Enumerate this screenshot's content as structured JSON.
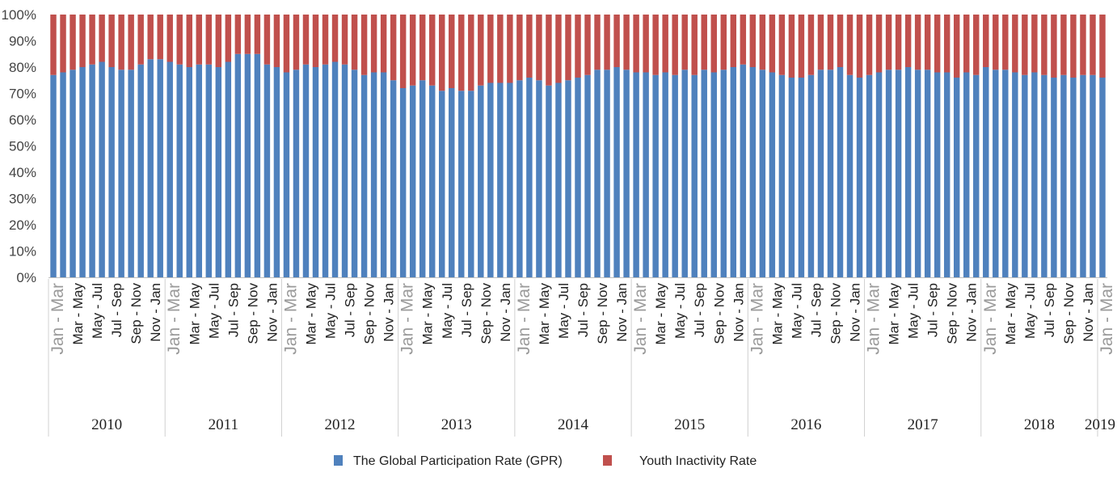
{
  "chart_data": {
    "type": "bar",
    "stacked": true,
    "percent_stacked": true,
    "title": "",
    "xlabel": "",
    "ylabel": "",
    "ylim": [
      0,
      100
    ],
    "y_ticks": [
      "0%",
      "10%",
      "20%",
      "30%",
      "40%",
      "50%",
      "60%",
      "70%",
      "80%",
      "90%",
      "100%"
    ],
    "grid": false,
    "legend_position": "bottom",
    "colors": {
      "gpr": "#4f81bd",
      "inactivity": "#c0504d"
    },
    "x_tick_labels": [
      "Jan - Mar",
      "Mar - May",
      "May - Jul",
      "Jul - Sep",
      "Sep - Nov",
      "Nov - Jan"
    ],
    "year_groups": [
      {
        "label": "2010",
        "bars": 12
      },
      {
        "label": "2011",
        "bars": 12
      },
      {
        "label": "2012",
        "bars": 12
      },
      {
        "label": "2013",
        "bars": 12
      },
      {
        "label": "2014",
        "bars": 12
      },
      {
        "label": "2015",
        "bars": 12
      },
      {
        "label": "2016",
        "bars": 12
      },
      {
        "label": "2017",
        "bars": 12
      },
      {
        "label": "2018",
        "bars": 12
      },
      {
        "label": "2019",
        "bars": 1
      }
    ],
    "series": [
      {
        "name": "The Global Participation Rate (GPR)",
        "values": [
          77,
          78,
          79,
          80,
          81,
          82,
          80,
          79,
          79,
          81,
          83,
          83,
          82,
          81,
          80,
          81,
          81,
          80,
          82,
          85,
          85,
          85,
          81,
          80,
          78,
          79,
          81,
          80,
          81,
          82,
          81,
          79,
          77,
          78,
          78,
          75,
          72,
          73,
          75,
          73,
          71,
          72,
          71,
          71,
          73,
          74,
          74,
          74,
          75,
          76,
          75,
          73,
          74,
          75,
          76,
          77,
          79,
          79,
          80,
          79,
          78,
          78,
          77,
          78,
          77,
          79,
          77,
          79,
          78,
          79,
          80,
          81,
          80,
          79,
          78,
          77,
          76,
          76,
          77,
          79,
          79,
          80,
          77,
          76,
          77,
          78,
          79,
          79,
          80,
          79,
          79,
          78,
          78,
          76,
          78,
          77,
          80,
          79,
          79,
          78,
          77,
          78,
          77,
          76,
          77,
          76,
          77,
          77,
          76
        ]
      },
      {
        "name": "Youth Inactivity Rate",
        "values": [
          23,
          22,
          21,
          20,
          19,
          18,
          20,
          21,
          21,
          19,
          17,
          17,
          18,
          19,
          20,
          19,
          19,
          20,
          18,
          15,
          15,
          15,
          19,
          20,
          22,
          21,
          19,
          20,
          19,
          18,
          19,
          21,
          23,
          22,
          22,
          25,
          28,
          27,
          25,
          27,
          29,
          28,
          29,
          29,
          27,
          26,
          26,
          26,
          25,
          24,
          25,
          27,
          26,
          25,
          24,
          23,
          21,
          21,
          20,
          21,
          22,
          22,
          23,
          22,
          23,
          21,
          23,
          21,
          22,
          21,
          20,
          19,
          20,
          21,
          22,
          23,
          24,
          24,
          23,
          21,
          21,
          20,
          23,
          24,
          23,
          22,
          21,
          21,
          20,
          21,
          21,
          22,
          22,
          24,
          22,
          23,
          20,
          21,
          21,
          22,
          23,
          22,
          23,
          24,
          23,
          24,
          23,
          23,
          24
        ]
      }
    ]
  }
}
